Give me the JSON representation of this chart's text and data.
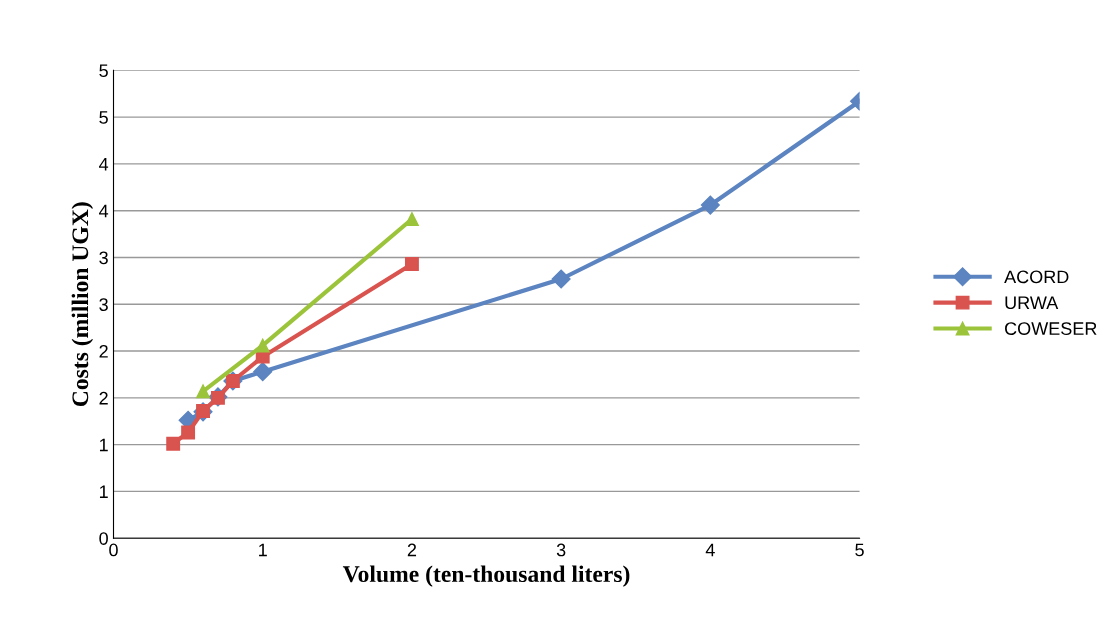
{
  "chart_data": {
    "type": "line",
    "xlabel": "Volume (ten-thousand liters)",
    "ylabel": "Costs (million UGX)",
    "xlim": [
      0,
      5
    ],
    "xticks": [
      0,
      1,
      2,
      3,
      4,
      5
    ],
    "ylim": [
      0,
      5
    ],
    "yticks": [
      0,
      {
        "value": 0.5,
        "label": "1"
      },
      1,
      {
        "value": 1.5,
        "label": "2"
      },
      2,
      {
        "value": 2.5,
        "label": "3"
      },
      3,
      {
        "value": 3.5,
        "label": "4"
      },
      4,
      {
        "value": 4.5,
        "label": "5"
      },
      5
    ],
    "grid": "y",
    "legend": "right",
    "series": [
      {
        "name": "ACORD",
        "color": "#5b84c0",
        "marker": "diamond",
        "x": [
          0.5,
          0.6,
          0.7,
          0.8,
          1,
          3,
          4,
          5
        ],
        "values": [
          1.26,
          1.35,
          1.51,
          1.68,
          1.78,
          2.77,
          3.56,
          4.67
        ]
      },
      {
        "name": "URWA",
        "color": "#d9534f",
        "marker": "square",
        "x": [
          0.4,
          0.5,
          0.6,
          0.7,
          0.8,
          1,
          2
        ],
        "values": [
          1.01,
          1.13,
          1.36,
          1.5,
          1.68,
          1.94,
          2.93
        ]
      },
      {
        "name": "COWESER",
        "color": "#9bc43b",
        "marker": "triangle",
        "x": [
          0.6,
          1,
          2
        ],
        "values": [
          1.57,
          2.06,
          3.41
        ]
      }
    ]
  }
}
